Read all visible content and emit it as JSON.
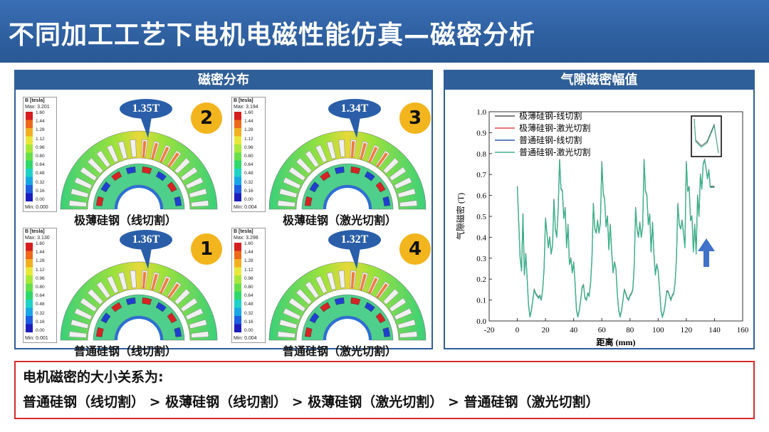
{
  "header": {
    "title": "不同加工工艺下电机电磁性能仿真—磁密分析"
  },
  "left_panel": {
    "title": "磁密分布",
    "cells": [
      {
        "caption": "极薄硅钢（线切割）",
        "callout": "1.35T",
        "badge": "2",
        "legend": {
          "header": "B [tesla]",
          "max": "Max: 3.201",
          "min": "Min: 0.000"
        }
      },
      {
        "caption": "极薄硅钢（激光切割）",
        "callout": "1.34T",
        "badge": "3",
        "legend": {
          "header": "B [tesla]",
          "max": "Max: 3.194",
          "min": "Min: 0.004"
        }
      },
      {
        "caption": "普通硅钢（线切割）",
        "callout": "1.36T",
        "badge": "1",
        "legend": {
          "header": "B [tesla]",
          "max": "Max: 3.130",
          "min": "Min: 0.001"
        }
      },
      {
        "caption": "普通硅钢（激光切割）",
        "callout": "1.32T",
        "badge": "4",
        "legend": {
          "header": "B [tesla]",
          "max": "Max: 3.298",
          "min": "Min: 0.004"
        }
      }
    ],
    "legend_ticks": [
      "1.60",
      "1.44",
      "1.28",
      "1.12",
      "0.96",
      "0.80",
      "0.64",
      "0.48",
      "0.32",
      "0.16",
      "0.00"
    ]
  },
  "right_panel": {
    "title": "气隙磁密幅值"
  },
  "chart_data": {
    "type": "line",
    "xlabel": "距离 (mm)",
    "ylabel": "气隙磁密 (T)",
    "xlim": [
      -20,
      160
    ],
    "ylim": [
      0.0,
      1.0
    ],
    "xticks": [
      "-20",
      "0",
      "20",
      "40",
      "60",
      "80",
      "100",
      "120",
      "140",
      "160"
    ],
    "yticks": [
      "0.0",
      "0.1",
      "0.2",
      "0.3",
      "0.4",
      "0.5",
      "0.6",
      "0.7",
      "0.8",
      "0.9",
      "1.0"
    ],
    "series": [
      {
        "name": "极薄硅钢-线切割",
        "color": "#555555"
      },
      {
        "name": "极薄硅钢-激光切割",
        "color": "#e04a4a"
      },
      {
        "name": "普通硅钢-线切割",
        "color": "#2c5cb0"
      },
      {
        "name": "普通硅钢-激光切割",
        "color": "#3cb38a"
      }
    ],
    "x": [
      0,
      2,
      3,
      4,
      5,
      6,
      7,
      8,
      9,
      10,
      11,
      12,
      13,
      14,
      15,
      16,
      17,
      18,
      19,
      20,
      21,
      22,
      23,
      24,
      25,
      26,
      27,
      28,
      29,
      30,
      31,
      32,
      33,
      34,
      35,
      36,
      37,
      38,
      39,
      40,
      41,
      42,
      43,
      44,
      45,
      46,
      47,
      48,
      49,
      50,
      51,
      52,
      53,
      54,
      55,
      56,
      57,
      58,
      59,
      60,
      61,
      62,
      63,
      64,
      65,
      66,
      67,
      68,
      69,
      70,
      71,
      72,
      73,
      74,
      75,
      76,
      77,
      78,
      79,
      80,
      81,
      82,
      83,
      84,
      85,
      86,
      87,
      88,
      89,
      90,
      91,
      92,
      93,
      94,
      95,
      96,
      97,
      98,
      99,
      100,
      101,
      102,
      103,
      104,
      105,
      106,
      107,
      108,
      109,
      110,
      111,
      112,
      113,
      114,
      115,
      116,
      117,
      118,
      119,
      120,
      121,
      122,
      123,
      124,
      125,
      126,
      127,
      128,
      129,
      130,
      131,
      132,
      133,
      134,
      135,
      136,
      137,
      138,
      139,
      140
    ],
    "y": [
      0.64,
      0.3,
      0.24,
      0.51,
      0.22,
      0.32,
      0.2,
      0.07,
      0.02,
      0.05,
      0.1,
      0.15,
      0.13,
      0.12,
      0.11,
      0.12,
      0.1,
      0.15,
      0.25,
      0.49,
      0.42,
      0.35,
      0.4,
      0.32,
      0.36,
      0.58,
      0.44,
      0.4,
      0.53,
      0.77,
      0.63,
      0.62,
      0.49,
      0.54,
      0.35,
      0.46,
      0.27,
      0.3,
      0.23,
      0.28,
      0.18,
      0.05,
      0.02,
      0.05,
      0.1,
      0.16,
      0.17,
      0.11,
      0.1,
      0.13,
      0.12,
      0.18,
      0.3,
      0.56,
      0.44,
      0.42,
      0.48,
      0.42,
      0.47,
      0.76,
      0.61,
      0.58,
      0.45,
      0.5,
      0.34,
      0.46,
      0.33,
      0.23,
      0.28,
      0.25,
      0.13,
      0.05,
      0.02,
      0.05,
      0.1,
      0.15,
      0.13,
      0.11,
      0.1,
      0.12,
      0.13,
      0.15,
      0.26,
      0.54,
      0.44,
      0.4,
      0.47,
      0.4,
      0.45,
      0.77,
      0.62,
      0.6,
      0.46,
      0.51,
      0.33,
      0.47,
      0.32,
      0.22,
      0.27,
      0.24,
      0.15,
      0.05,
      0.02,
      0.04,
      0.08,
      0.14,
      0.14,
      0.12,
      0.1,
      0.12,
      0.13,
      0.18,
      0.3,
      0.56,
      0.46,
      0.44,
      0.48,
      0.42,
      0.35,
      0.76,
      0.62,
      0.64,
      0.48,
      0.5,
      0.33,
      0.46,
      0.32,
      0.6,
      0.5,
      0.7,
      0.63,
      0.75,
      0.77,
      0.73,
      0.68,
      0.72,
      0.64,
      0.64,
      0.64,
      0.64
    ]
  }
}
